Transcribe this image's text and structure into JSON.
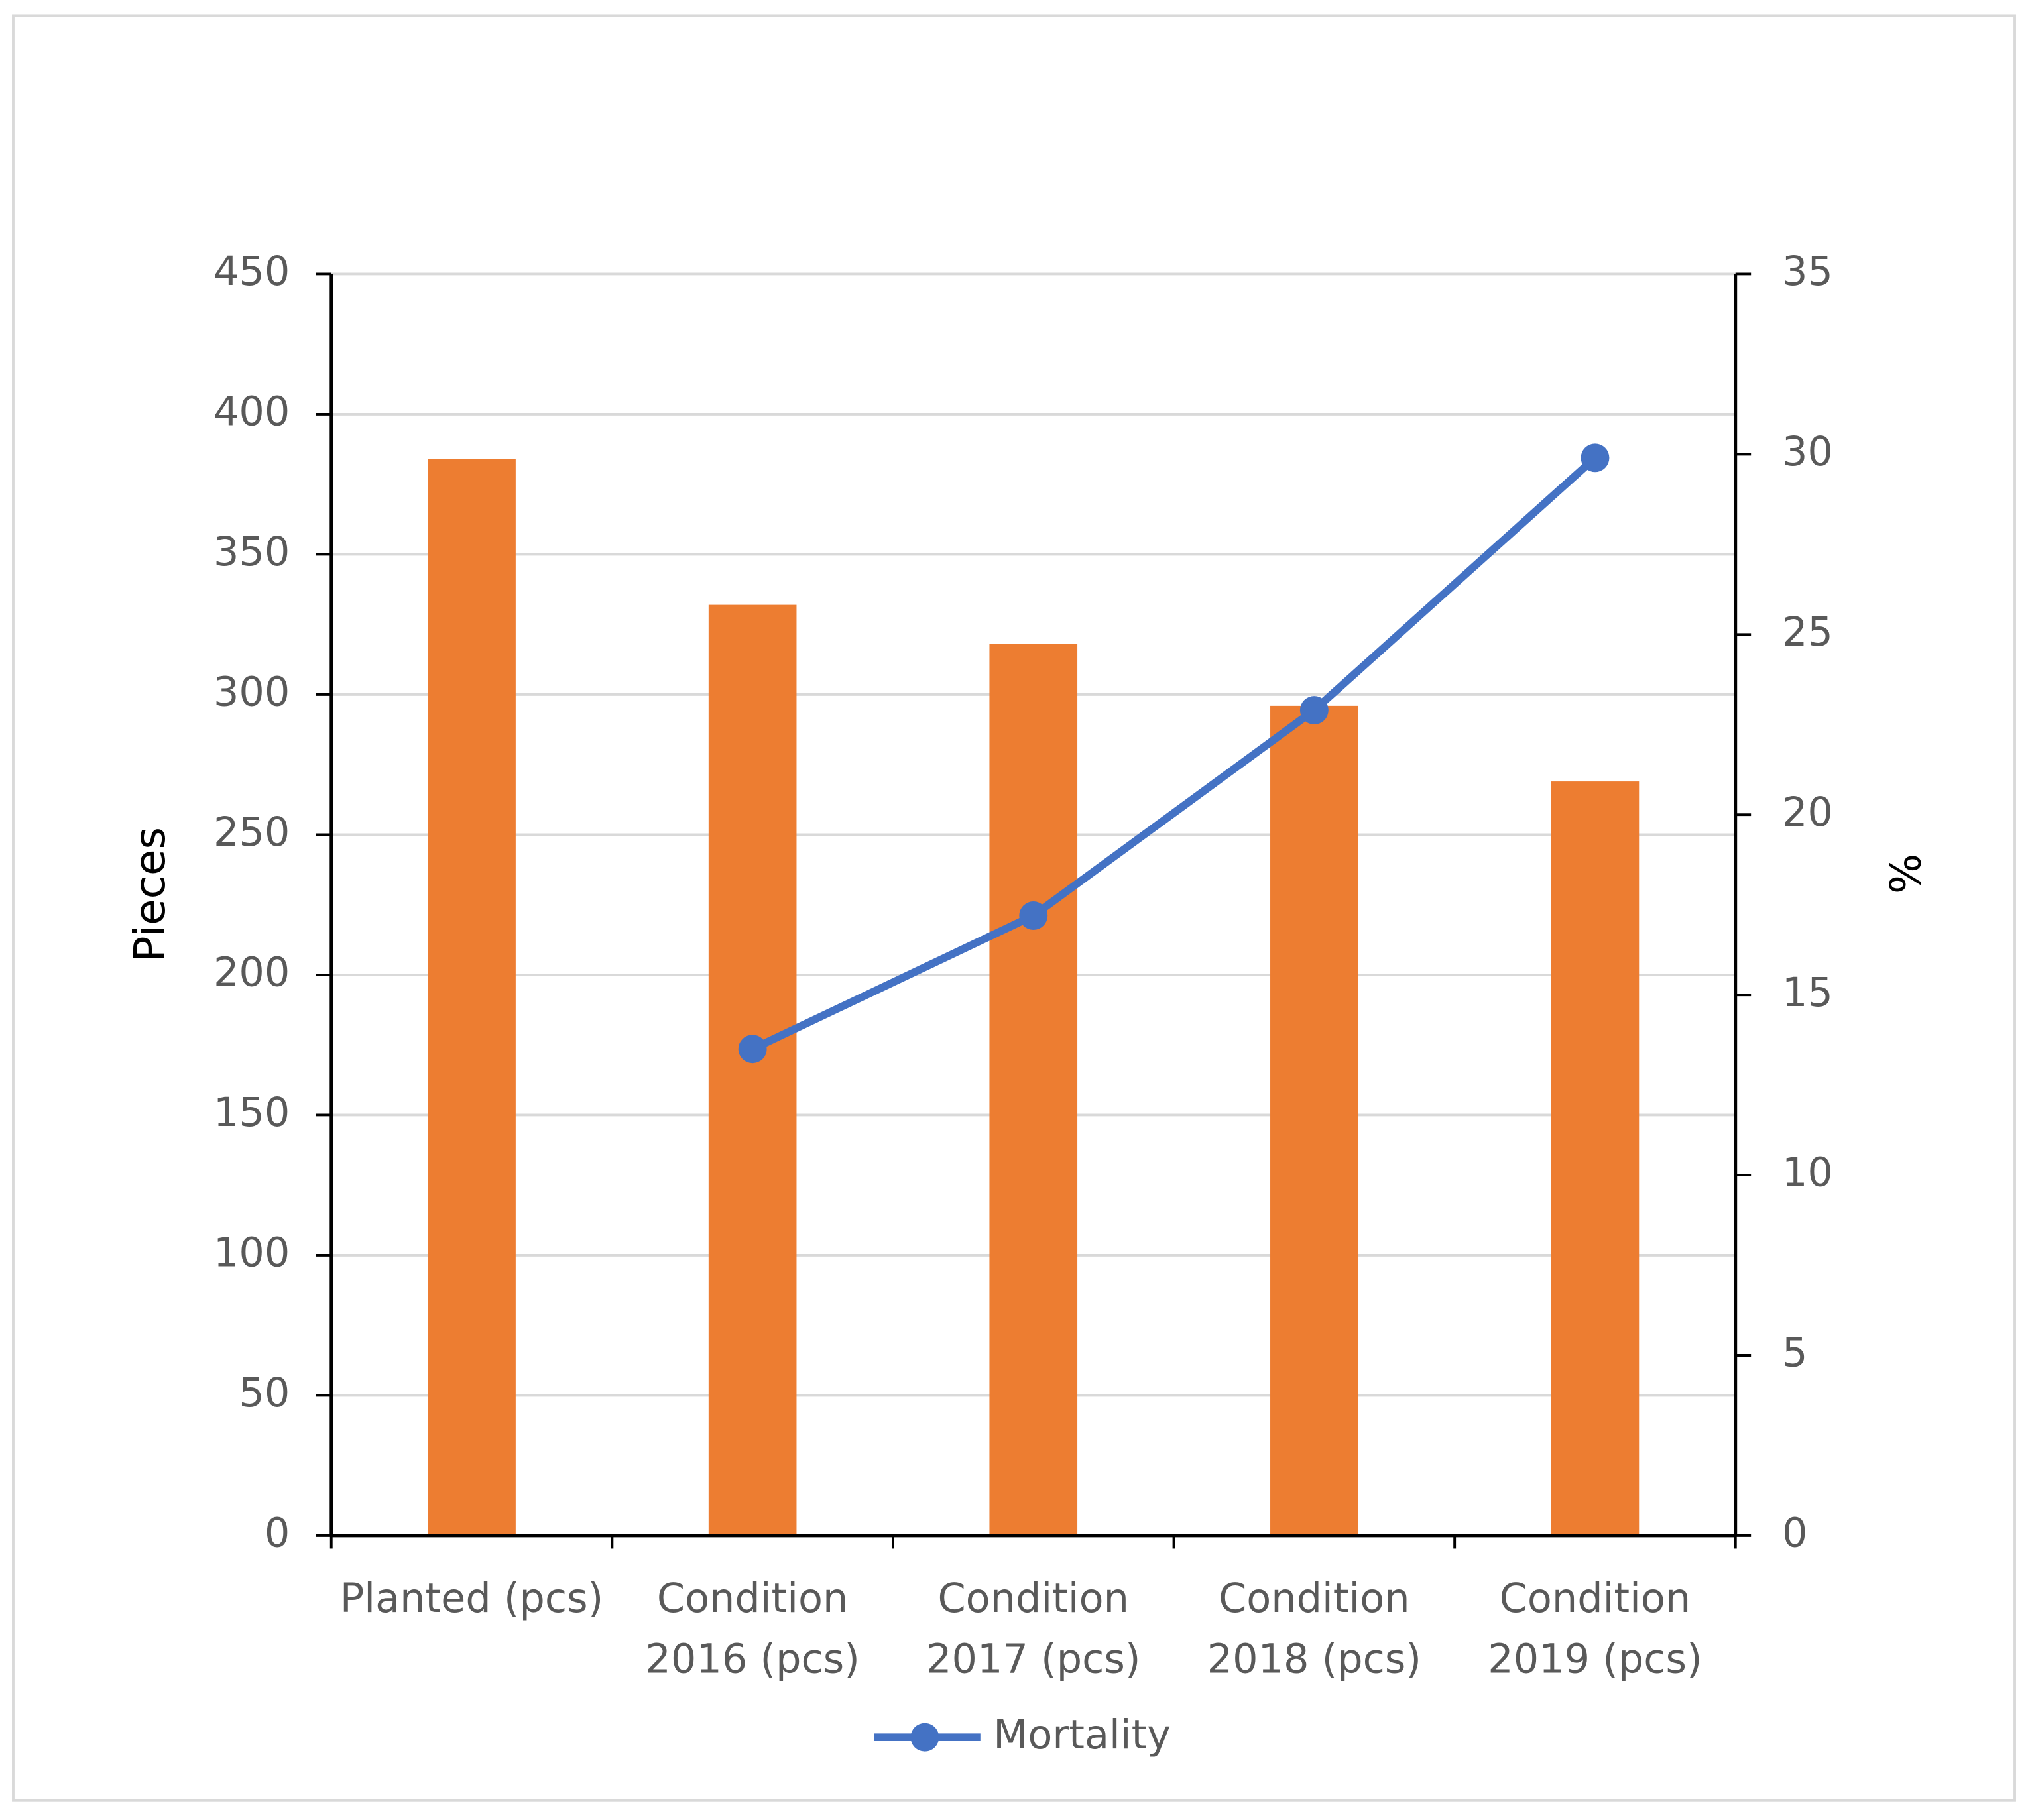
{
  "chart_data": {
    "type": "bar",
    "categories": [
      "Planted (pcs)",
      "Condition 2016 (pcs)",
      "Condition 2017 (pcs)",
      "Condition 2018 (pcs)",
      "Condition 2019 (pcs)"
    ],
    "series": [
      {
        "type": "bar",
        "color": "#ed7d31",
        "values": [
          384,
          332,
          318,
          296,
          269
        ]
      },
      {
        "type": "line",
        "name": "Mortality",
        "color": "#4472c4",
        "axis": "y2",
        "values": [
          null,
          13.5,
          17.2,
          22.9,
          29.9
        ]
      }
    ],
    "y_label": "Pieces",
    "y2_label": "%",
    "ylim": [
      0,
      450
    ],
    "yticks": [
      0,
      50,
      100,
      150,
      200,
      250,
      300,
      350,
      400,
      450
    ],
    "y2lim": [
      0,
      35
    ],
    "y2ticks": [
      0,
      5,
      10,
      15,
      20,
      25,
      30,
      35
    ],
    "grid": true,
    "legend": "bottom"
  }
}
